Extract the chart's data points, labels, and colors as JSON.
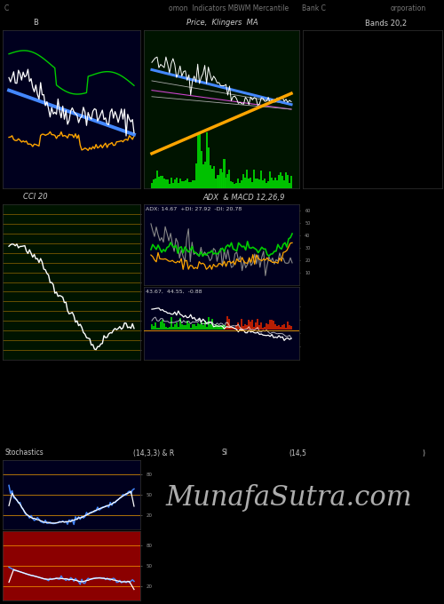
{
  "background_color": "#000000",
  "panel_bg_b": "#00001e",
  "panel_bg_price": "#001400",
  "panel_bg_bands": "#000000",
  "panel_bg_cci": "#001400",
  "panel_bg_adx": "#00001e",
  "panel_bg_macd": "#00001e",
  "panel_bg_stoch": "#00001e",
  "panel_bg_rsi": "#8b0000",
  "watermark": "MunafaSutra.com",
  "watermark_color": "#cccccc",
  "watermark_fontsize": 22,
  "label_b": "B",
  "label_price": "Price,  Klingers  MA",
  "label_bands": "Bands 20,2",
  "label_cci": "CCI 20",
  "label_adx": "ADX  & MACD 12,26,9",
  "label_adx_vals": "ADX: 14.67  +DI: 27.92  -DI: 20.78",
  "label_macd_vals": "43.67,  44.55,  -0.88",
  "label_stoch": "Stochastics",
  "label_stoch_params": "(14,3,3) & R",
  "label_si": "SI",
  "label_si_params": "(14,5",
  "label_si_end": ")",
  "orange_color": "#ffa500",
  "green_color": "#00cc00",
  "white_color": "#ffffff",
  "blue_color": "#4488ff",
  "red_color": "#cc2200",
  "gray_color": "#888888",
  "magenta_color": "#cc44cc",
  "dark_green_grid": "#004400"
}
